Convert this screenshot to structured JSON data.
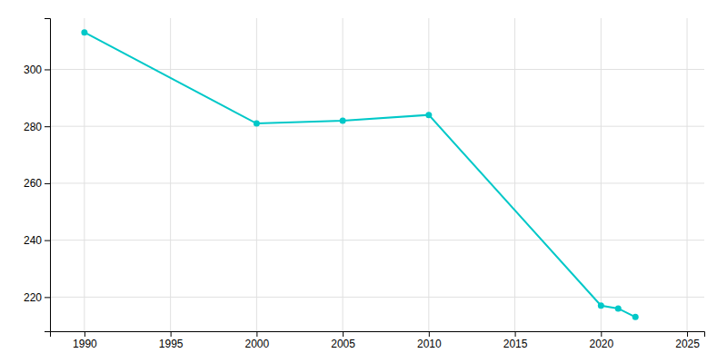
{
  "chart_data": {
    "type": "line",
    "x": [
      1990,
      2000,
      2005,
      2010,
      2020,
      2021,
      2022
    ],
    "values": [
      313,
      281,
      282,
      284,
      217,
      216,
      213
    ],
    "color": "#00c8c8",
    "marker": "circle",
    "xlim": [
      1988,
      2026
    ],
    "ylim": [
      208,
      318
    ],
    "xticks": [
      1990,
      1995,
      2000,
      2005,
      2010,
      2015,
      2020,
      2025
    ],
    "yticks": [
      220,
      240,
      260,
      280,
      300
    ],
    "grid": true
  }
}
